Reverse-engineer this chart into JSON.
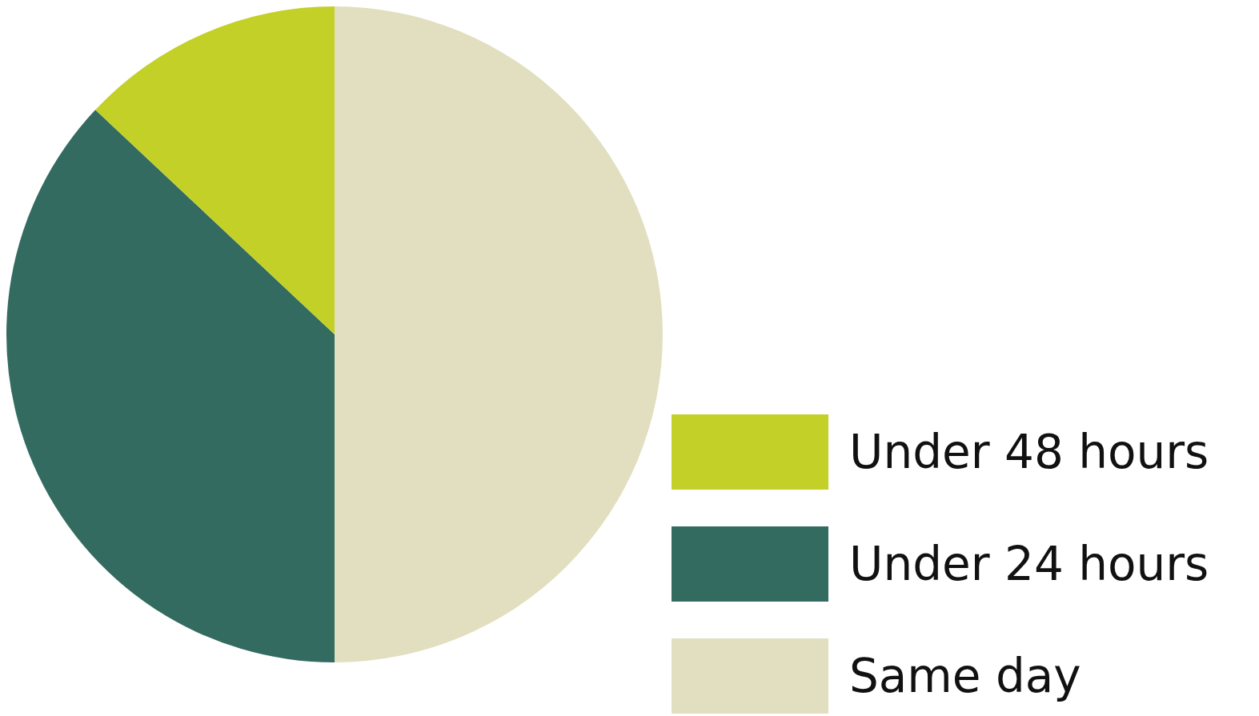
{
  "chart_data": {
    "type": "pie",
    "categories": [
      "Under 48 hours",
      "Under 24 hours",
      "Same day"
    ],
    "values": [
      13,
      37,
      50
    ],
    "colors": [
      "#c3d027",
      "#336b61",
      "#e1dfc0"
    ],
    "legend": "bottom right"
  }
}
